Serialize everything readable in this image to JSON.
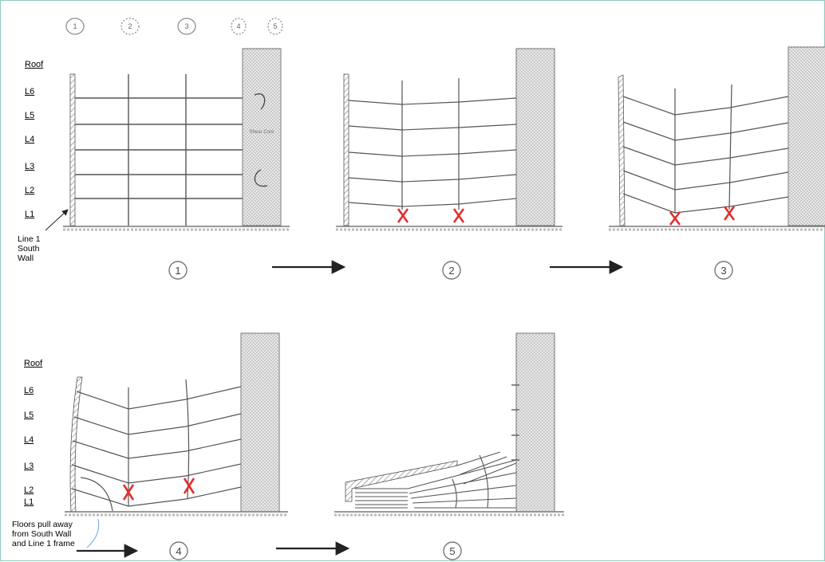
{
  "column_markers": [
    "1",
    "2",
    "3",
    "4",
    "5"
  ],
  "level_labels": [
    "Roof",
    "L6",
    "L5",
    "L4",
    "L3",
    "L2",
    "L1"
  ],
  "core_label": "Shear Core",
  "line1_annotation": [
    "Line 1",
    "South",
    "Wall"
  ],
  "stages": [
    "1",
    "2",
    "3",
    "4",
    "5"
  ],
  "failure_mark": "X",
  "floors_note": [
    "Floors pull away",
    "from South Wall",
    "and Line 1 frame"
  ],
  "colors": {
    "border": "#8fcabf",
    "failure": "#e03030",
    "line": "#555555",
    "core_fill": "#d9d9d9"
  }
}
